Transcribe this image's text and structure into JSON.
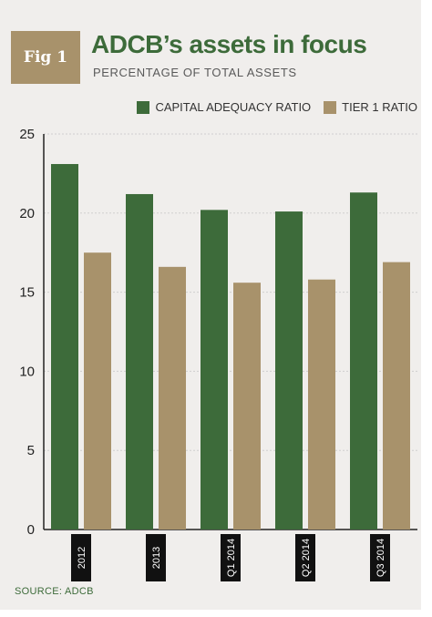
{
  "badge": "Fig 1",
  "title": "ADCB’s assets in focus",
  "subtitle": "PERCENTAGE OF TOTAL ASSETS",
  "source": "SOURCE: ADCB",
  "colors": {
    "green": "#3d6b3a",
    "tan": "#a8926b",
    "grid": "#cfcfcf",
    "label_bg": "#111111"
  },
  "chart_data": {
    "type": "bar",
    "categories": [
      "2012",
      "2013",
      "Q1 2014",
      "Q2 2014",
      "Q3 2014"
    ],
    "series": [
      {
        "name": "CAPITAL ADEQUACY RATIO",
        "values": [
          23.1,
          21.2,
          20.2,
          20.1,
          21.3
        ]
      },
      {
        "name": "TIER 1 RATIO",
        "values": [
          17.5,
          16.6,
          15.6,
          15.8,
          16.9
        ]
      }
    ],
    "ylim": [
      0,
      25
    ],
    "yticks": [
      0,
      5,
      10,
      15,
      20,
      25
    ],
    "grid": true,
    "legend": "top-right"
  }
}
